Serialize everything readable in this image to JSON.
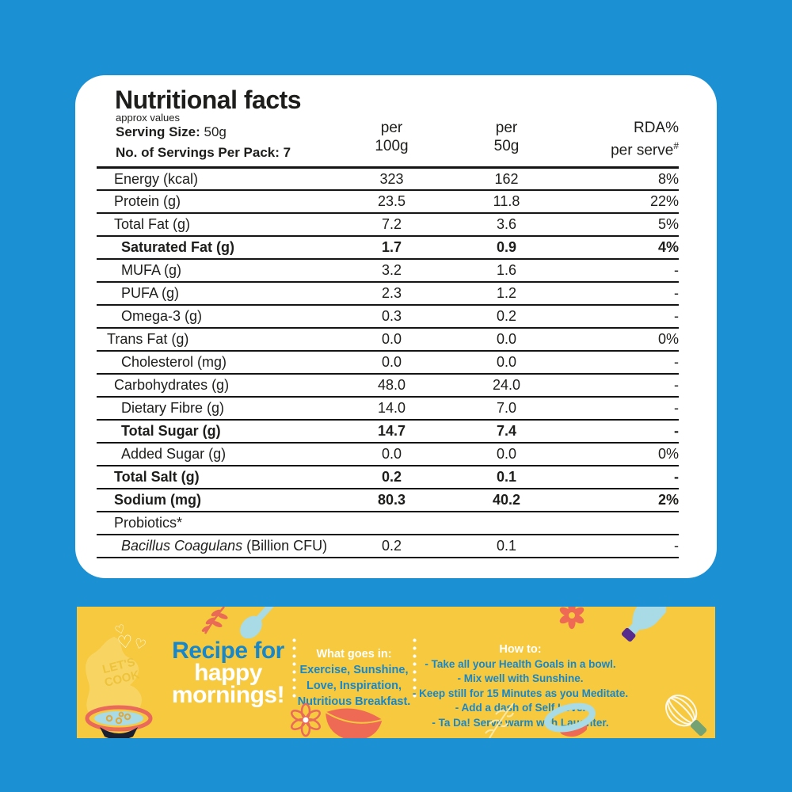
{
  "colors": {
    "background_blue": "#1b90d2",
    "card_white": "#ffffff",
    "banner_yellow": "#f6c93f",
    "banner_text_blue": "#1787ca",
    "accent_red": "#ee6a55",
    "accent_light_blue": "#a8dbe5",
    "accent_purple": "#562b8d",
    "accent_green": "#74a273",
    "table_text": "#1d1d1b"
  },
  "card": {
    "title": "Nutritional facts",
    "subtitle": "approx values",
    "serving_size_label": "Serving Size:",
    "serving_size_value": "50g",
    "servings_per_pack_label": "No. of Servings Per Pack:",
    "servings_per_pack_value": "7",
    "columns": {
      "col1_line1": "per",
      "col1_line2": "100g",
      "col2_line1": "per",
      "col2_line2": "50g",
      "col3_line1": "RDA%",
      "col3_line2": "per serve",
      "col3_sup": "#"
    }
  },
  "table": {
    "rows": [
      {
        "label": "Energy (kcal)",
        "per100": "323",
        "per50": "162",
        "rda": "8%",
        "bold": false,
        "indent": 1
      },
      {
        "label": "Protein (g)",
        "per100": "23.5",
        "per50": "11.8",
        "rda": "22%",
        "bold": false,
        "indent": 1
      },
      {
        "label": "Total Fat (g)",
        "per100": "7.2",
        "per50": "3.6",
        "rda": "5%",
        "bold": false,
        "indent": 1
      },
      {
        "label": "Saturated Fat (g)",
        "per100": "1.7",
        "per50": "0.9",
        "rda": "4%",
        "bold": true,
        "indent": 2
      },
      {
        "label": "MUFA (g)",
        "per100": "3.2",
        "per50": "1.6",
        "rda": "-",
        "bold": false,
        "indent": 2
      },
      {
        "label": "PUFA (g)",
        "per100": "2.3",
        "per50": "1.2",
        "rda": "-",
        "bold": false,
        "indent": 2
      },
      {
        "label": "Omega-3 (g)",
        "per100": "0.3",
        "per50": "0.2",
        "rda": "-",
        "bold": false,
        "indent": 2
      },
      {
        "label": "Trans Fat (g)",
        "per100": "0.0",
        "per50": "0.0",
        "rda": "0%",
        "bold": false,
        "indent": 0
      },
      {
        "label": "Cholesterol (mg)",
        "per100": "0.0",
        "per50": "0.0",
        "rda": "-",
        "bold": false,
        "indent": 2
      },
      {
        "label": "Carbohydrates (g)",
        "per100": "48.0",
        "per50": "24.0",
        "rda": "-",
        "bold": false,
        "indent": 1
      },
      {
        "label": "Dietary Fibre (g)",
        "per100": "14.0",
        "per50": "7.0",
        "rda": "-",
        "bold": false,
        "indent": 2
      },
      {
        "label": "Total Sugar (g)",
        "per100": "14.7",
        "per50": "7.4",
        "rda": "-",
        "bold": true,
        "indent": 2
      },
      {
        "label": "Added Sugar (g)",
        "per100": "0.0",
        "per50": "0.0",
        "rda": "0%",
        "bold": false,
        "indent": 2
      },
      {
        "label": "Total Salt (g)",
        "per100": "0.2",
        "per50": "0.1",
        "rda": "-",
        "bold": true,
        "indent": 1
      },
      {
        "label": "Sodium (mg)",
        "per100": "80.3",
        "per50": "40.2",
        "rda": "2%",
        "bold": true,
        "indent": 1
      },
      {
        "label": "Probiotics*",
        "per100": "",
        "per50": "",
        "rda": "",
        "bold": false,
        "indent": 1
      },
      {
        "label_italic": "Bacillus Coagulans",
        "label_rest": " (Billion CFU)",
        "per100": "0.2",
        "per50": "0.1",
        "rda": "-",
        "bold": false,
        "indent": 2
      }
    ]
  },
  "banner": {
    "headline_line1": "Recipe for",
    "headline_line2": "happy",
    "headline_line3": "mornings!",
    "lets_cook_line1": "LET'S",
    "lets_cook_line2": "COOK",
    "what_goes_in": {
      "title": "What goes in:",
      "lines": [
        "Exercise, Sunshine,",
        "Love, Inspiration,",
        "Nutritious Breakfast."
      ]
    },
    "how_to": {
      "title": "How to:",
      "steps": [
        "- Take all your Health Goals in a bowl.",
        "- Mix well with Sunshine.",
        "- Keep still for 15 Minutes as you Meditate.",
        "- Add a dash of Self Love.",
        "- Ta Da! Serve warm with Laughter."
      ]
    },
    "decorations": [
      "heart-icon",
      "steam-cloud",
      "soup-bowl-icon",
      "spoon-icon",
      "leaf-sprig-icon",
      "flower-icon",
      "bottle-icon",
      "flower-outline-icon",
      "red-bowl-icon",
      "pale-sprig-icon",
      "hat-plate-icon",
      "whisk-icon"
    ],
    "heart_glyph": "♡"
  }
}
